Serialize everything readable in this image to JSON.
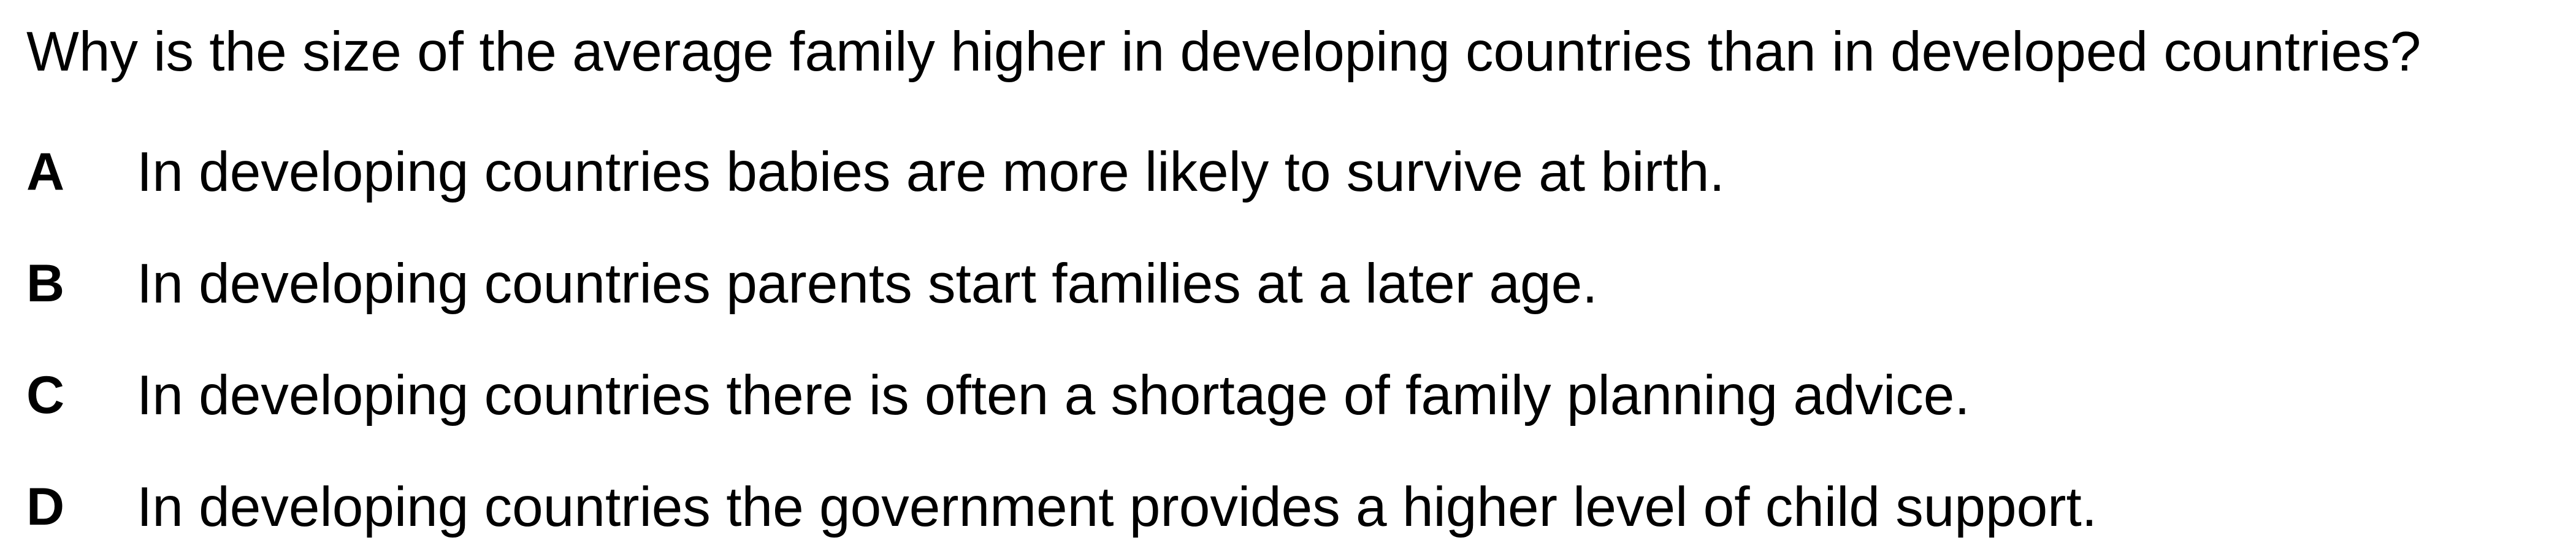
{
  "question": "Why is the size of the average family higher in developing countries than in developed countries?",
  "options": [
    {
      "letter": "A",
      "text": "In developing countries babies are more likely to survive at birth."
    },
    {
      "letter": "B",
      "text": "In developing countries parents start families at a later age."
    },
    {
      "letter": "C",
      "text": "In developing countries there is often a shortage of family planning advice."
    },
    {
      "letter": "D",
      "text": "In developing countries the government provides a higher level of child support."
    }
  ]
}
